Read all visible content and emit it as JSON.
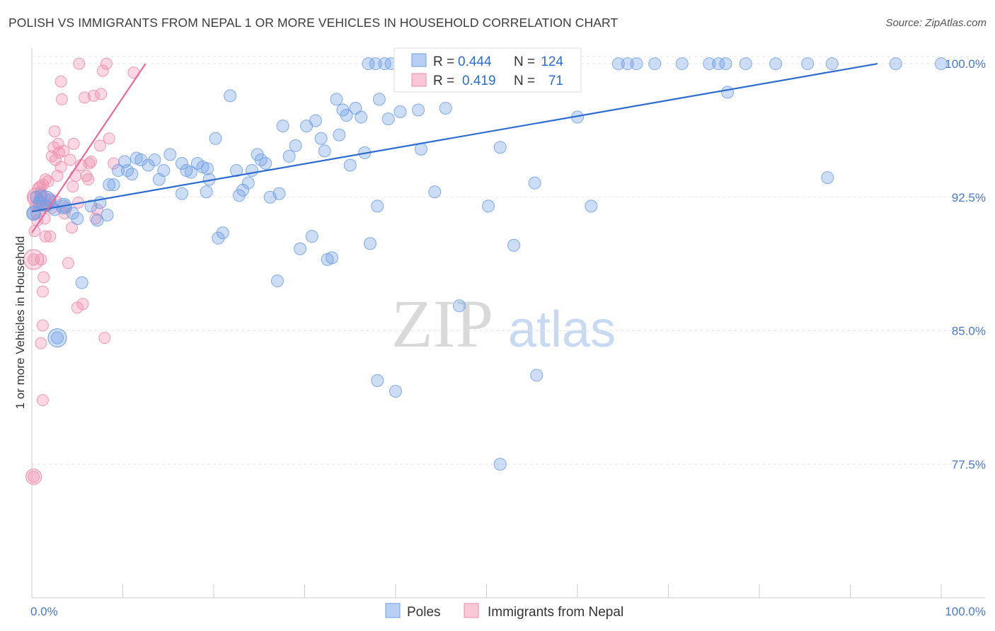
{
  "title": "POLISH VS IMMIGRANTS FROM NEPAL 1 OR MORE VEHICLES IN HOUSEHOLD CORRELATION CHART",
  "source": "Source: ZipAtlas.com",
  "watermark": {
    "zip": "ZIP",
    "atlas": "atlas"
  },
  "chart_data": {
    "type": "scatter",
    "title": "POLISH VS IMMIGRANTS FROM NEPAL 1 OR MORE VEHICLES IN HOUSEHOLD CORRELATION CHART",
    "xlabel": "",
    "ylabel": "1 or more Vehicles in Household",
    "xlim": [
      0,
      100
    ],
    "ylim": [
      70.0,
      100.4
    ],
    "x_tick_labels": [
      "0.0%",
      "100.0%"
    ],
    "y_ticks": [
      100.0,
      92.5,
      85.0,
      77.5
    ],
    "y_tick_labels": [
      "100.0%",
      "92.5%",
      "85.0%",
      "77.5%"
    ],
    "grid": true,
    "legend": "top-center",
    "colors": {
      "Poles": "#6f9fe6",
      "Immigrants from Nepal": "#f08cab",
      "poles_line": "#2d6cd0",
      "nepal_line": "#e8699a"
    },
    "stats": [
      {
        "name": "Poles",
        "R": "0.444",
        "N": "124"
      },
      {
        "name": "Immigrants from Nepal",
        "R": "0.419",
        "N": "71"
      }
    ],
    "series": [
      {
        "name": "Poles",
        "trend": {
          "x": [
            0,
            93
          ],
          "y": [
            91.7,
            100.0
          ]
        },
        "points": [
          [
            0.5,
            92.5
          ],
          [
            0.8,
            92.2
          ],
          [
            1.0,
            92.6
          ],
          [
            1.5,
            92.0
          ],
          [
            2.0,
            92.3
          ],
          [
            2.5,
            91.8
          ],
          [
            3.5,
            92.0
          ],
          [
            4.5,
            91.6
          ],
          [
            5.0,
            91.3
          ],
          [
            6.5,
            92.0
          ],
          [
            7.2,
            91.2
          ],
          [
            7.5,
            92.2
          ],
          [
            8.5,
            93.2
          ],
          [
            8.3,
            91.5
          ],
          [
            9.0,
            93.2
          ],
          [
            9.5,
            94.0
          ],
          [
            10.2,
            94.5
          ],
          [
            10.5,
            94.0
          ],
          [
            11.0,
            93.8
          ],
          [
            11.5,
            94.7
          ],
          [
            12.0,
            94.6
          ],
          [
            12.8,
            94.3
          ],
          [
            13.5,
            94.6
          ],
          [
            14.0,
            93.5
          ],
          [
            14.5,
            94.0
          ],
          [
            15.2,
            94.9
          ],
          [
            16.5,
            94.4
          ],
          [
            17.0,
            94.0
          ],
          [
            17.5,
            93.9
          ],
          [
            18.2,
            94.4
          ],
          [
            18.8,
            94.2
          ],
          [
            19.3,
            94.1
          ],
          [
            19.5,
            93.5
          ],
          [
            19.2,
            92.8
          ],
          [
            16.5,
            92.7
          ],
          [
            20.2,
            95.8
          ],
          [
            20.5,
            90.2
          ],
          [
            21.0,
            90.5
          ],
          [
            21.8,
            98.2
          ],
          [
            22.5,
            94.0
          ],
          [
            22.8,
            92.6
          ],
          [
            23.2,
            92.9
          ],
          [
            23.8,
            93.3
          ],
          [
            24.2,
            94.0
          ],
          [
            24.8,
            94.9
          ],
          [
            25.2,
            94.6
          ],
          [
            25.7,
            94.4
          ],
          [
            26.2,
            92.5
          ],
          [
            27.2,
            92.7
          ],
          [
            27.6,
            96.5
          ],
          [
            28.3,
            94.8
          ],
          [
            29.0,
            95.4
          ],
          [
            29.5,
            89.6
          ],
          [
            30.2,
            96.5
          ],
          [
            30.8,
            90.3
          ],
          [
            31.2,
            96.8
          ],
          [
            31.8,
            95.8
          ],
          [
            32.2,
            95.1
          ],
          [
            32.5,
            89.0
          ],
          [
            33.0,
            89.1
          ],
          [
            33.8,
            96.0
          ],
          [
            34.2,
            97.4
          ],
          [
            34.6,
            97.1
          ],
          [
            35.0,
            94.3
          ],
          [
            35.6,
            97.5
          ],
          [
            36.2,
            97.0
          ],
          [
            36.6,
            95.0
          ],
          [
            37.2,
            89.9
          ],
          [
            38.0,
            92.0
          ],
          [
            39.2,
            96.9
          ],
          [
            40.5,
            97.3
          ],
          [
            42.5,
            97.4
          ],
          [
            41.0,
            99.5
          ],
          [
            42.0,
            99.6
          ],
          [
            44.3,
            92.8
          ],
          [
            45.5,
            97.5
          ],
          [
            47.0,
            86.4
          ],
          [
            48.5,
            99.9
          ],
          [
            50.2,
            92.0
          ],
          [
            51.5,
            95.3
          ],
          [
            53.0,
            89.8
          ],
          [
            55.3,
            93.3
          ],
          [
            55.5,
            82.5
          ],
          [
            56.2,
            100.0
          ],
          [
            60.0,
            97.0
          ],
          [
            61.5,
            92.0
          ],
          [
            64.5,
            100.0
          ],
          [
            65.5,
            100.0
          ],
          [
            66.5,
            100.0
          ],
          [
            68.5,
            100.0
          ],
          [
            71.5,
            100.0
          ],
          [
            74.5,
            100.0
          ],
          [
            75.5,
            100.0
          ],
          [
            76.3,
            100.0
          ],
          [
            78.5,
            100.0
          ],
          [
            81.8,
            100.0
          ],
          [
            85.3,
            100.0
          ],
          [
            87.5,
            93.6
          ],
          [
            88.0,
            100.0
          ],
          [
            95.0,
            100.0
          ],
          [
            100.0,
            100.0
          ],
          [
            37.0,
            100.0
          ],
          [
            37.8,
            100.0
          ],
          [
            38.8,
            100.0
          ],
          [
            39.5,
            100.0
          ],
          [
            40.6,
            100.0
          ],
          [
            41.5,
            100.0
          ],
          [
            43.3,
            100.0
          ],
          [
            44.5,
            100.0
          ],
          [
            46.5,
            100.0
          ],
          [
            49.5,
            100.0
          ],
          [
            50.5,
            100.0
          ],
          [
            51.5,
            100.0
          ],
          [
            52.5,
            100.0
          ],
          [
            53.5,
            100.0
          ],
          [
            54.5,
            100.0
          ],
          [
            76.5,
            98.4
          ],
          [
            33.5,
            98.0
          ],
          [
            38.2,
            98.0
          ],
          [
            42.8,
            95.2
          ],
          [
            27.0,
            87.8
          ],
          [
            38.0,
            82.2
          ],
          [
            40.0,
            81.6
          ],
          [
            51.5,
            77.5
          ],
          [
            2.8,
            84.6
          ],
          [
            5.5,
            87.7
          ],
          [
            0.2,
            91.6
          ]
        ]
      },
      {
        "name": "Immigrants from Nepal",
        "trend": {
          "x": [
            0,
            12.5
          ],
          "y": [
            90.5,
            100.0
          ]
        },
        "points": [
          [
            0.2,
            92.5
          ],
          [
            0.4,
            92.0
          ],
          [
            0.5,
            91.6
          ],
          [
            0.7,
            93.0
          ],
          [
            0.8,
            92.3
          ],
          [
            1.0,
            92.8
          ],
          [
            1.2,
            93.2
          ],
          [
            1.4,
            92.5
          ],
          [
            1.5,
            93.5
          ],
          [
            1.6,
            92.0
          ],
          [
            1.8,
            93.4
          ],
          [
            2.0,
            92.4
          ],
          [
            2.2,
            94.8
          ],
          [
            2.4,
            95.3
          ],
          [
            2.5,
            96.2
          ],
          [
            2.6,
            94.6
          ],
          [
            2.8,
            93.7
          ],
          [
            3.0,
            95.0
          ],
          [
            3.2,
            99.0
          ],
          [
            3.3,
            98.0
          ],
          [
            3.5,
            95.1
          ],
          [
            3.6,
            91.6
          ],
          [
            3.8,
            91.9
          ],
          [
            4.0,
            88.8
          ],
          [
            4.2,
            94.6
          ],
          [
            4.4,
            90.8
          ],
          [
            4.6,
            95.5
          ],
          [
            4.8,
            93.7
          ],
          [
            5.0,
            86.3
          ],
          [
            5.2,
            100.0
          ],
          [
            5.4,
            94.3
          ],
          [
            5.6,
            86.5
          ],
          [
            5.8,
            98.1
          ],
          [
            6.0,
            93.7
          ],
          [
            6.2,
            93.5
          ],
          [
            6.5,
            94.5
          ],
          [
            6.8,
            98.2
          ],
          [
            7.0,
            91.3
          ],
          [
            7.2,
            91.8
          ],
          [
            7.5,
            95.4
          ],
          [
            7.6,
            98.3
          ],
          [
            7.8,
            99.6
          ],
          [
            8.2,
            100.0
          ],
          [
            8.5,
            95.8
          ],
          [
            8.0,
            84.6
          ],
          [
            9.0,
            94.4
          ],
          [
            11.2,
            99.5
          ],
          [
            1.5,
            90.3
          ],
          [
            1.0,
            89.0
          ],
          [
            1.2,
            87.2
          ],
          [
            1.3,
            88.0
          ],
          [
            1.2,
            85.3
          ],
          [
            1.0,
            84.3
          ],
          [
            1.2,
            81.1
          ],
          [
            0.2,
            76.8
          ],
          [
            0.2,
            89.0
          ],
          [
            2.0,
            90.3
          ],
          [
            2.6,
            92.3
          ],
          [
            1.8,
            92.1
          ],
          [
            3.2,
            94.2
          ],
          [
            0.6,
            91.2
          ],
          [
            0.9,
            93.1
          ],
          [
            1.1,
            92.2
          ],
          [
            2.2,
            91.9
          ],
          [
            0.3,
            90.6
          ],
          [
            1.4,
            91.3
          ],
          [
            0.8,
            92.0
          ],
          [
            2.9,
            95.5
          ],
          [
            4.5,
            93.1
          ],
          [
            6.3,
            94.4
          ],
          [
            5.1,
            92.2
          ]
        ]
      }
    ]
  },
  "bottom_legend": [
    "Poles",
    "Immigrants from Nepal"
  ]
}
